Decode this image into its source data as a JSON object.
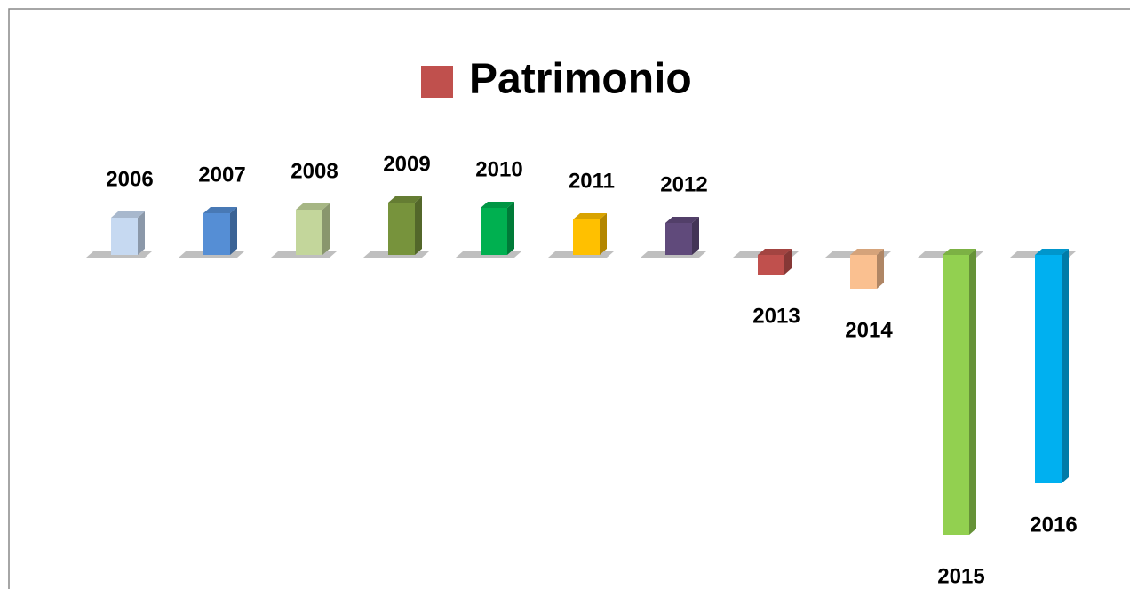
{
  "chart_data": {
    "type": "bar3d",
    "categories": [
      "2006",
      "2007",
      "2008",
      "2009",
      "2010",
      "2011",
      "2012",
      "2013",
      "2014",
      "2015",
      "2016"
    ],
    "series": [
      {
        "name": "Patrimonio",
        "color": "#c0504d",
        "values": [
          42,
          47,
          51,
          59,
          53,
          40,
          36,
          -22,
          -38,
          -315,
          -257
        ],
        "point_colors": [
          "#c6d9f1",
          "#558ed5",
          "#c3d69b",
          "#77933c",
          "#00b050",
          "#ffc000",
          "#604a7b",
          "#c0504d",
          "#fac090",
          "#92d050",
          "#00b0f0"
        ]
      }
    ],
    "legend": "top"
  }
}
